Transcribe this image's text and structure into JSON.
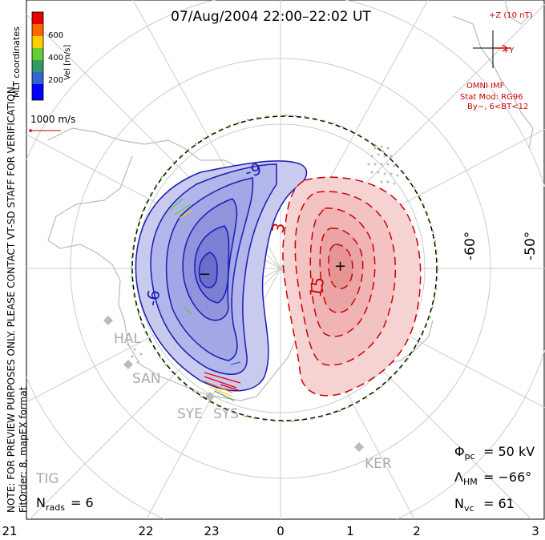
{
  "title": "07/Aug/2004  22:00–22:02  UT",
  "scale": {
    "label": "Vel [m/s]",
    "ticks": [
      "600",
      "400",
      "200"
    ],
    "colors": [
      "#e60000",
      "#ff6600",
      "#ffcc00",
      "#66cc33",
      "#339966",
      "#3366cc",
      "#0000ff"
    ],
    "coords_label": "MLT coordinates",
    "vector_label": "1000 m/s"
  },
  "imf": {
    "z_label": "+Z (10 nT)",
    "y_label": "+Y",
    "omni": "OMNI IMF",
    "stat_mod": "Stat Mod: RG96",
    "bins": "By−, 6<BT<12"
  },
  "latitudes": [
    "-60°",
    "-50°"
  ],
  "mlt_labels": [
    "21",
    "22",
    "23",
    "0",
    "1",
    "2",
    "3"
  ],
  "contours": {
    "neg_labels": [
      "-9",
      "-6",
      "−"
    ],
    "pos_labels": [
      "3",
      "15",
      "+"
    ]
  },
  "stations": [
    "HAL",
    "SAN",
    "SYE",
    "SYS",
    "KER",
    "TIG"
  ],
  "side_note": "NOTE: FOR PREVIEW PURPOSES ONLY. PLEASE CONTACT VT-SD STAFF FOR VERIFICATION.",
  "fitorder": "FitOrder: 8, mapEX format",
  "stats": {
    "nrads": "6",
    "phi_pc": "= 50 kV",
    "lambda_hm": "= −66°",
    "nvc": "= 61"
  },
  "colors": {
    "neg": "#1a1ab4",
    "pos": "#cc0000",
    "neg_fill": "#c9cbee",
    "pos_fill": "#f4c9c9",
    "boundary": "#66cc33"
  }
}
